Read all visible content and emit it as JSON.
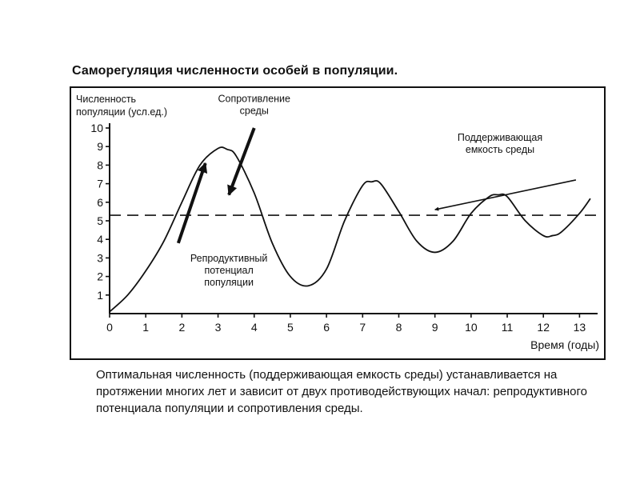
{
  "title": "Саморегуляция численности особей в популяции.",
  "caption": "Оптимальная численность (поддерживающая емкость среды) устанавливается на протяжении многих лет и зависит от двух противодействующих начал: репродуктивного потенциала популяции и сопротивления среды.",
  "chart_data": {
    "type": "line",
    "ylabel_lines": [
      "Численность",
      "популяции (усл.ед.)"
    ],
    "xlabel": "Время (годы)",
    "xlim": [
      0,
      13.5
    ],
    "ylim": [
      0,
      10
    ],
    "x_ticks": [
      0,
      1,
      2,
      3,
      4,
      5,
      6,
      7,
      8,
      9,
      10,
      11,
      12,
      13
    ],
    "y_ticks": [
      1,
      2,
      3,
      4,
      5,
      6,
      7,
      8,
      9,
      10
    ],
    "grid": false,
    "series": [
      {
        "x": [
          0,
          0.5,
          1,
          1.5,
          2,
          2.5,
          3,
          3.25,
          3.5,
          4,
          4.5,
          5,
          5.5,
          6,
          6.5,
          7,
          7.25,
          7.5,
          8,
          8.5,
          9,
          9.5,
          10,
          10.5,
          10.75,
          11,
          11.5,
          12,
          12.25,
          12.5,
          13,
          13.3
        ],
        "y": [
          0.1,
          1.0,
          2.3,
          3.9,
          6.0,
          8.0,
          8.9,
          8.85,
          8.5,
          6.5,
          3.8,
          2.0,
          1.5,
          2.4,
          5.0,
          6.9,
          7.1,
          7.0,
          5.5,
          3.9,
          3.3,
          3.9,
          5.4,
          6.3,
          6.4,
          6.3,
          5.0,
          4.2,
          4.2,
          4.4,
          5.4,
          6.2
        ]
      }
    ],
    "reference_line": {
      "y": 5.3,
      "style": "dashed"
    },
    "annotations": [
      {
        "lines": [
          "Сопротивление",
          "среды"
        ],
        "x": 4.0,
        "y": 11.4,
        "arrow_from": [
          4.0,
          10.0
        ],
        "arrow_to": [
          3.3,
          6.4
        ]
      },
      {
        "lines": [
          "Поддерживающая",
          "емкость среды"
        ],
        "x": 10.8,
        "y": 9.3,
        "arrow_from": [
          12.9,
          7.2
        ],
        "arrow_to": [
          9.0,
          5.6
        ]
      },
      {
        "lines": [
          "Репродуктивный",
          "потенциал",
          "популяции"
        ],
        "x": 3.3,
        "y": 2.8,
        "arrow_from": [
          1.9,
          3.8
        ],
        "arrow_to": [
          2.65,
          8.1
        ]
      }
    ]
  }
}
